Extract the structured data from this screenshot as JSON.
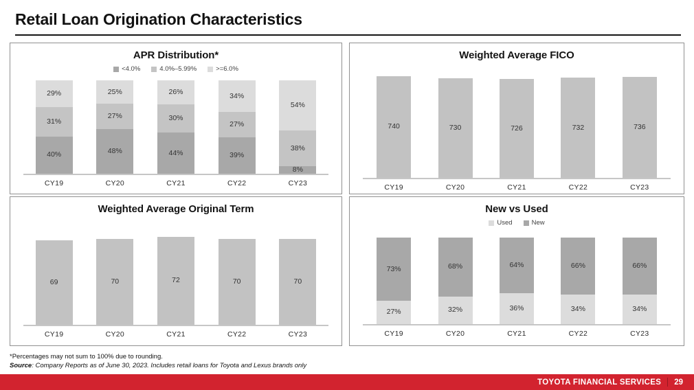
{
  "slide": {
    "title": "Retail Loan Origination Characteristics",
    "footnote": "*Percentages may not sum to 100% due to rounding.",
    "source": {
      "label": "Source",
      "text": ": Company Reports as of June 30, 2023. Includes retail loans for Toyota and Lexus brands only"
    },
    "footer": {
      "brand": "TOYOTA FINANCIAL SERVICES",
      "page_number": "29",
      "bar_color": "#d2232f"
    }
  },
  "chart_data": [
    {
      "id": "apr-distribution",
      "type": "stacked-bar",
      "title": "APR Distribution*",
      "categories": [
        "CY19",
        "CY20",
        "CY21",
        "CY22",
        "CY23"
      ],
      "series": [
        {
          "name": "<4.0%",
          "color": "#a8a8a8",
          "values": [
            40,
            48,
            44,
            39,
            8
          ]
        },
        {
          "name": "4.0%–5.99%",
          "color": "#c4c4c4",
          "values": [
            31,
            27,
            30,
            27,
            38
          ]
        },
        {
          "name": ">=6.0%",
          "color": "#dcdcdc",
          "values": [
            29,
            25,
            26,
            34,
            54
          ]
        }
      ],
      "value_suffix": "%",
      "legend_position": "top",
      "ylim": [
        0,
        100
      ]
    },
    {
      "id": "weighted-average-fico",
      "type": "bar",
      "title": "Weighted Average FICO",
      "categories": [
        "CY19",
        "CY20",
        "CY21",
        "CY22",
        "CY23"
      ],
      "values": [
        740,
        730,
        726,
        732,
        736
      ],
      "bar_color": "#c2c2c2",
      "value_suffix": "",
      "ylim": [
        300,
        760
      ]
    },
    {
      "id": "weighted-average-original-term",
      "type": "bar",
      "title": "Weighted Average Original Term",
      "categories": [
        "CY19",
        "CY20",
        "CY21",
        "CY22",
        "CY23"
      ],
      "values": [
        69,
        70,
        72,
        70,
        70
      ],
      "bar_color": "#c2c2c2",
      "value_suffix": "",
      "ylim": [
        0,
        74
      ]
    },
    {
      "id": "new-vs-used",
      "type": "stacked-bar",
      "title": "New vs Used",
      "categories": [
        "CY19",
        "CY20",
        "CY21",
        "CY22",
        "CY23"
      ],
      "series": [
        {
          "name": "Used",
          "color": "#dcdcdc",
          "values": [
            27,
            32,
            36,
            34,
            34
          ]
        },
        {
          "name": "New",
          "color": "#a8a8a8",
          "values": [
            73,
            68,
            64,
            66,
            66
          ]
        }
      ],
      "value_suffix": "%",
      "legend_position": "top",
      "ylim": [
        0,
        100
      ]
    }
  ]
}
